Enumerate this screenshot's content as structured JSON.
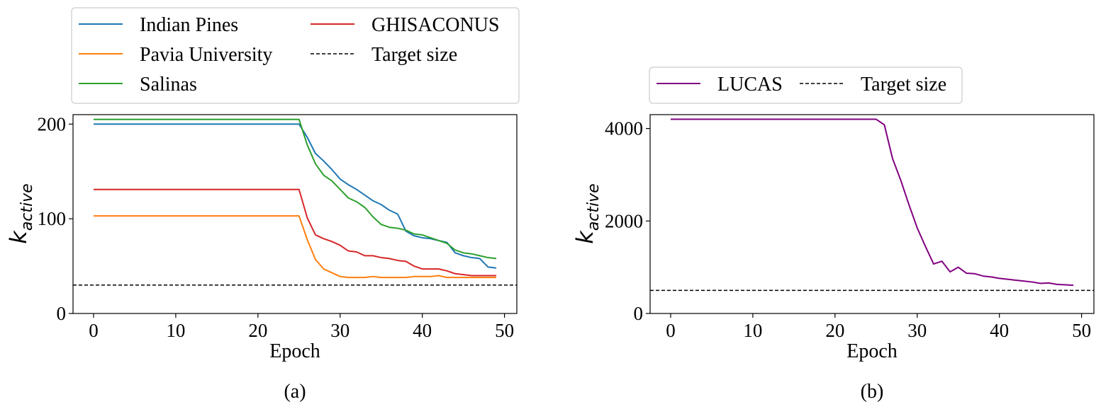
{
  "chart_data": [
    {
      "type": "line",
      "caption": "(a)",
      "xlabel": "Epoch",
      "ylabel": "k",
      "ylabel_sub": "active",
      "xlim": [
        -2.5,
        51.5
      ],
      "ylim": [
        0,
        210
      ],
      "xticks": [
        0,
        10,
        20,
        30,
        40,
        50
      ],
      "yticks": [
        0,
        100,
        200
      ],
      "legend_position": "above",
      "legend_columns": 2,
      "series": [
        {
          "name": "Indian Pines",
          "color": "#1f77b4",
          "style": "solid",
          "x": [
            0,
            25,
            26,
            27,
            28,
            29,
            30,
            31,
            32,
            33,
            34,
            35,
            36,
            37,
            38,
            39,
            40,
            41,
            42,
            43,
            44,
            45,
            46,
            47,
            48,
            49
          ],
          "y": [
            200,
            200,
            186,
            169,
            161,
            152,
            142,
            136,
            131,
            125,
            119,
            115,
            109,
            105,
            87,
            82,
            80,
            79,
            77,
            75,
            64,
            61,
            59,
            58,
            49,
            48
          ]
        },
        {
          "name": "Pavia University",
          "color": "#ff7f0e",
          "style": "solid",
          "x": [
            0,
            25,
            26,
            27,
            28,
            29,
            30,
            31,
            32,
            33,
            34,
            35,
            36,
            37,
            38,
            39,
            40,
            41,
            42,
            43,
            44,
            45,
            46,
            47,
            48,
            49
          ],
          "y": [
            103,
            103,
            78,
            57,
            47,
            43,
            39,
            38,
            38,
            38,
            39,
            38,
            38,
            38,
            38,
            39,
            39,
            39,
            40,
            38,
            38,
            38,
            38,
            38,
            38,
            38
          ]
        },
        {
          "name": "Salinas",
          "color": "#2ca02c",
          "style": "solid",
          "x": [
            0,
            25,
            26,
            27,
            28,
            29,
            30,
            31,
            32,
            33,
            34,
            35,
            36,
            37,
            38,
            39,
            40,
            41,
            42,
            43,
            44,
            45,
            46,
            47,
            48,
            49
          ],
          "y": [
            205,
            205,
            178,
            158,
            146,
            140,
            131,
            122,
            118,
            112,
            102,
            94,
            91,
            90,
            88,
            84,
            83,
            80,
            77,
            74,
            67,
            64,
            63,
            61,
            59,
            58
          ]
        },
        {
          "name": "GHISACONUS",
          "color": "#d62728",
          "style": "solid",
          "x": [
            0,
            25,
            26,
            27,
            28,
            29,
            30,
            31,
            32,
            33,
            34,
            35,
            36,
            37,
            38,
            39,
            40,
            41,
            42,
            43,
            44,
            45,
            46,
            47,
            48,
            49
          ],
          "y": [
            131,
            131,
            101,
            83,
            79,
            76,
            72,
            66,
            65,
            61,
            61,
            59,
            58,
            56,
            55,
            50,
            47,
            47,
            47,
            45,
            42,
            41,
            40,
            40,
            40,
            40
          ]
        },
        {
          "name": "Target size",
          "color": "#000000",
          "style": "dashed",
          "x": [
            -2.5,
            51.5
          ],
          "y": [
            30,
            30
          ]
        }
      ]
    },
    {
      "type": "line",
      "caption": "(b)",
      "xlabel": "Epoch",
      "ylabel": "k",
      "ylabel_sub": "active",
      "xlim": [
        -2.5,
        51.5
      ],
      "ylim": [
        0,
        4300
      ],
      "xticks": [
        0,
        10,
        20,
        30,
        40,
        50
      ],
      "yticks": [
        0,
        2000,
        4000
      ],
      "legend_position": "above",
      "legend_columns": 2,
      "series": [
        {
          "name": "LUCAS",
          "color": "#800080",
          "style": "solid",
          "x": [
            0,
            25,
            26,
            27,
            28,
            29,
            30,
            31,
            32,
            33,
            34,
            35,
            36,
            37,
            38,
            39,
            40,
            41,
            42,
            43,
            44,
            45,
            46,
            47,
            48,
            49
          ],
          "y": [
            4200,
            4200,
            4080,
            3350,
            2880,
            2350,
            1850,
            1450,
            1070,
            1130,
            900,
            1000,
            870,
            860,
            810,
            790,
            760,
            740,
            720,
            700,
            680,
            650,
            660,
            630,
            620,
            610
          ]
        },
        {
          "name": "Target size",
          "color": "#000000",
          "style": "dashed",
          "x": [
            -2.5,
            51.5
          ],
          "y": [
            500,
            500
          ]
        }
      ]
    }
  ]
}
